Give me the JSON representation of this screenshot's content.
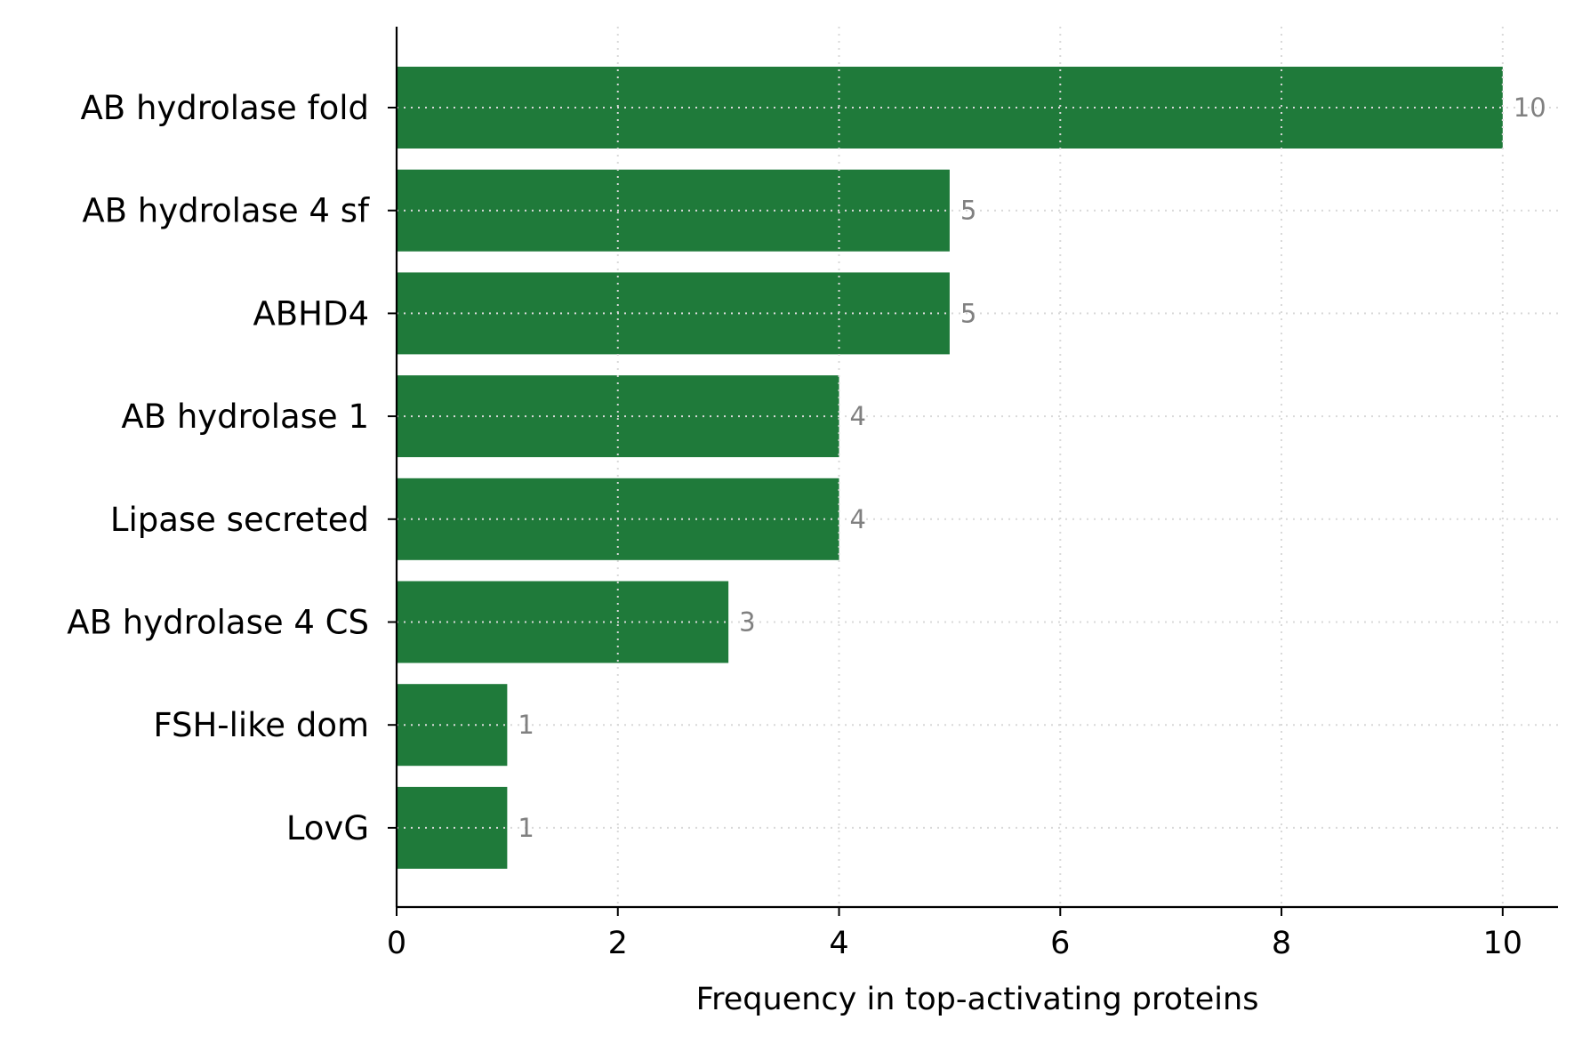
{
  "chart_data": {
    "type": "bar",
    "orientation": "horizontal",
    "categories": [
      "AB hydrolase fold",
      "AB hydrolase 4 sf",
      "ABHD4",
      "AB hydrolase 1",
      "Lipase secreted",
      "AB hydrolase 4 CS",
      "FSH-like dom",
      "LovG"
    ],
    "values": [
      10,
      5,
      5,
      4,
      4,
      3,
      1,
      1
    ],
    "title": "",
    "xlabel": "Frequency in top-activating proteins",
    "ylabel": "",
    "xlim": [
      0,
      10.5
    ],
    "xticks": [
      0,
      2,
      4,
      6,
      8,
      10
    ],
    "grid": true,
    "legend": "none",
    "data_labels": true
  },
  "colors": {
    "bar": "#1f7a3a",
    "data_label": "#808080",
    "axis": "#000000",
    "grid": "#d9d9d9"
  }
}
